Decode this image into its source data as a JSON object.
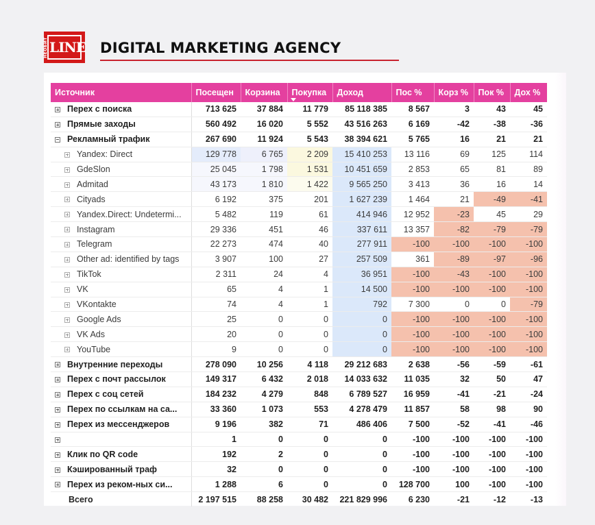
{
  "brand": {
    "logo_small": "НЕОБИТ",
    "logo_big": "LINE",
    "title": "DIGITAL MARKETING AGENCY"
  },
  "colors": {
    "header_bg": "#e4409f",
    "negative_cell": "#f5c1ad",
    "revenue_cell": "#dbe8fa",
    "logo_red": "#d31919"
  },
  "table": {
    "columns": [
      "Источник",
      "Посещен",
      "Корзина",
      "Покупка",
      "Доход",
      "Пос %",
      "Корз %",
      "Пок %",
      "Дох %"
    ],
    "sorted_column_index": 3,
    "rows": [
      {
        "level": 0,
        "expander": "plus",
        "name": "Перех с поиска",
        "visits": "713 625",
        "cart": "37 884",
        "buy": "11 779",
        "revenue": "85 118 385",
        "vis_p": "8 567",
        "cart_p": "3",
        "buy_p": "43",
        "rev_p": "45"
      },
      {
        "level": 0,
        "expander": "plus",
        "name": "Прямые заходы",
        "visits": "560 492",
        "cart": "16 020",
        "buy": "5 552",
        "revenue": "43 516 263",
        "vis_p": "6 169",
        "cart_p": "-42",
        "buy_p": "-38",
        "rev_p": "-36"
      },
      {
        "level": 0,
        "expander": "minus",
        "name": "Рекламный трафик",
        "visits": "267 690",
        "cart": "11 924",
        "buy": "5 543",
        "revenue": "38 394 621",
        "vis_p": "5 765",
        "cart_p": "16",
        "buy_p": "21",
        "rev_p": "21"
      },
      {
        "level": 1,
        "expander": "plus",
        "name": "Yandex: Direct",
        "visits": "129 778",
        "cart": "6 765",
        "buy": "2 209",
        "revenue": "15 410 253",
        "vis_p": "13 116",
        "cart_p": "69",
        "buy_p": "125",
        "rev_p": "114",
        "hl": {
          "visits": "visit-hi",
          "cart": "cart-hi",
          "buy": "buy-hi",
          "revenue": "dohod"
        }
      },
      {
        "level": 1,
        "expander": "plus",
        "name": "GdeSlon",
        "visits": "25 045",
        "cart": "1 798",
        "buy": "1 531",
        "revenue": "10 451 659",
        "vis_p": "2 853",
        "cart_p": "65",
        "buy_p": "81",
        "rev_p": "89",
        "hl": {
          "visits": "visit-lo",
          "cart": "visit-lo",
          "buy": "buy-hi",
          "revenue": "dohod"
        }
      },
      {
        "level": 1,
        "expander": "plus",
        "name": "Admitad",
        "visits": "43 173",
        "cart": "1 810",
        "buy": "1 422",
        "revenue": "9 565 250",
        "vis_p": "3 413",
        "cart_p": "36",
        "buy_p": "16",
        "rev_p": "14",
        "hl": {
          "visits": "visit-lo",
          "cart": "visit-lo",
          "buy": "buy-lo",
          "revenue": "dohod"
        }
      },
      {
        "level": 1,
        "expander": "plus",
        "name": "Cityads",
        "visits": "6 192",
        "cart": "375",
        "buy": "201",
        "revenue": "1 627 239",
        "vis_p": "1 464",
        "cart_p": "21",
        "buy_p": "-49",
        "rev_p": "-41",
        "hl": {
          "revenue": "dohod",
          "buy_p": "neg",
          "rev_p": "neg"
        }
      },
      {
        "level": 1,
        "expander": "plus",
        "name": "Yandex.Direct: Undetermi...",
        "visits": "5 482",
        "cart": "119",
        "buy": "61",
        "revenue": "414 946",
        "vis_p": "12 952",
        "cart_p": "-23",
        "buy_p": "45",
        "rev_p": "29",
        "hl": {
          "revenue": "dohod",
          "cart_p": "neg"
        }
      },
      {
        "level": 1,
        "expander": "plus",
        "name": "Instagram",
        "visits": "29 336",
        "cart": "451",
        "buy": "46",
        "revenue": "337 611",
        "vis_p": "13 357",
        "cart_p": "-82",
        "buy_p": "-79",
        "rev_p": "-79",
        "hl": {
          "revenue": "dohod",
          "cart_p": "neg",
          "buy_p": "neg",
          "rev_p": "neg"
        }
      },
      {
        "level": 1,
        "expander": "plus",
        "name": "Telegram",
        "visits": "22 273",
        "cart": "474",
        "buy": "40",
        "revenue": "277 911",
        "vis_p": "-100",
        "cart_p": "-100",
        "buy_p": "-100",
        "rev_p": "-100",
        "hl": {
          "revenue": "dohod",
          "vis_p": "neg",
          "cart_p": "neg",
          "buy_p": "neg",
          "rev_p": "neg"
        }
      },
      {
        "level": 1,
        "expander": "plus",
        "name": "Other ad: identified by tags",
        "visits": "3 907",
        "cart": "100",
        "buy": "27",
        "revenue": "257 509",
        "vis_p": "361",
        "cart_p": "-89",
        "buy_p": "-97",
        "rev_p": "-96",
        "hl": {
          "revenue": "dohod",
          "cart_p": "neg",
          "buy_p": "neg",
          "rev_p": "neg"
        }
      },
      {
        "level": 1,
        "expander": "plus",
        "name": "TikTok",
        "visits": "2 311",
        "cart": "24",
        "buy": "4",
        "revenue": "36 951",
        "vis_p": "-100",
        "cart_p": "-43",
        "buy_p": "-100",
        "rev_p": "-100",
        "hl": {
          "revenue": "dohod",
          "vis_p": "neg",
          "cart_p": "neg",
          "buy_p": "neg",
          "rev_p": "neg"
        }
      },
      {
        "level": 1,
        "expander": "plus",
        "name": "VK",
        "visits": "65",
        "cart": "4",
        "buy": "1",
        "revenue": "14 500",
        "vis_p": "-100",
        "cart_p": "-100",
        "buy_p": "-100",
        "rev_p": "-100",
        "hl": {
          "revenue": "dohod",
          "vis_p": "neg",
          "cart_p": "neg",
          "buy_p": "neg",
          "rev_p": "neg"
        }
      },
      {
        "level": 1,
        "expander": "plus",
        "name": "VKontakte",
        "visits": "74",
        "cart": "4",
        "buy": "1",
        "revenue": "792",
        "vis_p": "7 300",
        "cart_p": "0",
        "buy_p": "0",
        "rev_p": "-79",
        "hl": {
          "revenue": "dohod",
          "rev_p": "neg"
        }
      },
      {
        "level": 1,
        "expander": "plus",
        "name": "Google Ads",
        "visits": "25",
        "cart": "0",
        "buy": "0",
        "revenue": "0",
        "vis_p": "-100",
        "cart_p": "-100",
        "buy_p": "-100",
        "rev_p": "-100",
        "hl": {
          "revenue": "dohod",
          "vis_p": "neg",
          "cart_p": "neg",
          "buy_p": "neg",
          "rev_p": "neg"
        }
      },
      {
        "level": 1,
        "expander": "plus",
        "name": "VK Ads",
        "visits": "20",
        "cart": "0",
        "buy": "0",
        "revenue": "0",
        "vis_p": "-100",
        "cart_p": "-100",
        "buy_p": "-100",
        "rev_p": "-100",
        "hl": {
          "revenue": "dohod",
          "vis_p": "neg",
          "cart_p": "neg",
          "buy_p": "neg",
          "rev_p": "neg"
        }
      },
      {
        "level": 1,
        "expander": "plus",
        "name": "YouTube",
        "visits": "9",
        "cart": "0",
        "buy": "0",
        "revenue": "0",
        "vis_p": "-100",
        "cart_p": "-100",
        "buy_p": "-100",
        "rev_p": "-100",
        "hl": {
          "revenue": "dohod",
          "vis_p": "neg",
          "cart_p": "neg",
          "buy_p": "neg",
          "rev_p": "neg"
        }
      },
      {
        "level": 0,
        "expander": "plus",
        "name": "Внутренние переходы",
        "visits": "278 090",
        "cart": "10 256",
        "buy": "4 118",
        "revenue": "29 212 683",
        "vis_p": "2 638",
        "cart_p": "-56",
        "buy_p": "-59",
        "rev_p": "-61"
      },
      {
        "level": 0,
        "expander": "plus",
        "name": "Перех с почт рассылок",
        "visits": "149 317",
        "cart": "6 432",
        "buy": "2 018",
        "revenue": "14 033 632",
        "vis_p": "11 035",
        "cart_p": "32",
        "buy_p": "50",
        "rev_p": "47"
      },
      {
        "level": 0,
        "expander": "plus",
        "name": "Перех с соц сетей",
        "visits": "184 232",
        "cart": "4 279",
        "buy": "848",
        "revenue": "6 789 527",
        "vis_p": "16 959",
        "cart_p": "-41",
        "buy_p": "-21",
        "rev_p": "-24"
      },
      {
        "level": 0,
        "expander": "plus",
        "name": "Перех по ссылкам на са...",
        "visits": "33 360",
        "cart": "1 073",
        "buy": "553",
        "revenue": "4 278 479",
        "vis_p": "11 857",
        "cart_p": "58",
        "buy_p": "98",
        "rev_p": "90"
      },
      {
        "level": 0,
        "expander": "plus",
        "name": "Перех из мессенджеров",
        "visits": "9 196",
        "cart": "382",
        "buy": "71",
        "revenue": "486 406",
        "vis_p": "7 500",
        "cart_p": "-52",
        "buy_p": "-41",
        "rev_p": "-46"
      },
      {
        "level": 0,
        "expander": "plus",
        "name": "",
        "visits": "1",
        "cart": "0",
        "buy": "0",
        "revenue": "0",
        "vis_p": "-100",
        "cart_p": "-100",
        "buy_p": "-100",
        "rev_p": "-100"
      },
      {
        "level": 0,
        "expander": "plus",
        "name": "Клик по QR code",
        "visits": "192",
        "cart": "2",
        "buy": "0",
        "revenue": "0",
        "vis_p": "-100",
        "cart_p": "-100",
        "buy_p": "-100",
        "rev_p": "-100"
      },
      {
        "level": 0,
        "expander": "plus",
        "name": "Кэшированный траф",
        "visits": "32",
        "cart": "0",
        "buy": "0",
        "revenue": "0",
        "vis_p": "-100",
        "cart_p": "-100",
        "buy_p": "-100",
        "rev_p": "-100"
      },
      {
        "level": 0,
        "expander": "plus",
        "name": "Перех из реком-ных си...",
        "visits": "1 288",
        "cart": "6",
        "buy": "0",
        "revenue": "0",
        "vis_p": "128 700",
        "cart_p": "100",
        "buy_p": "-100",
        "rev_p": "-100"
      }
    ],
    "total": {
      "name": "Всего",
      "visits": "2 197 515",
      "cart": "88 258",
      "buy": "30 482",
      "revenue": "221 829 996",
      "vis_p": "6 230",
      "cart_p": "-21",
      "buy_p": "-12",
      "rev_p": "-13"
    }
  }
}
